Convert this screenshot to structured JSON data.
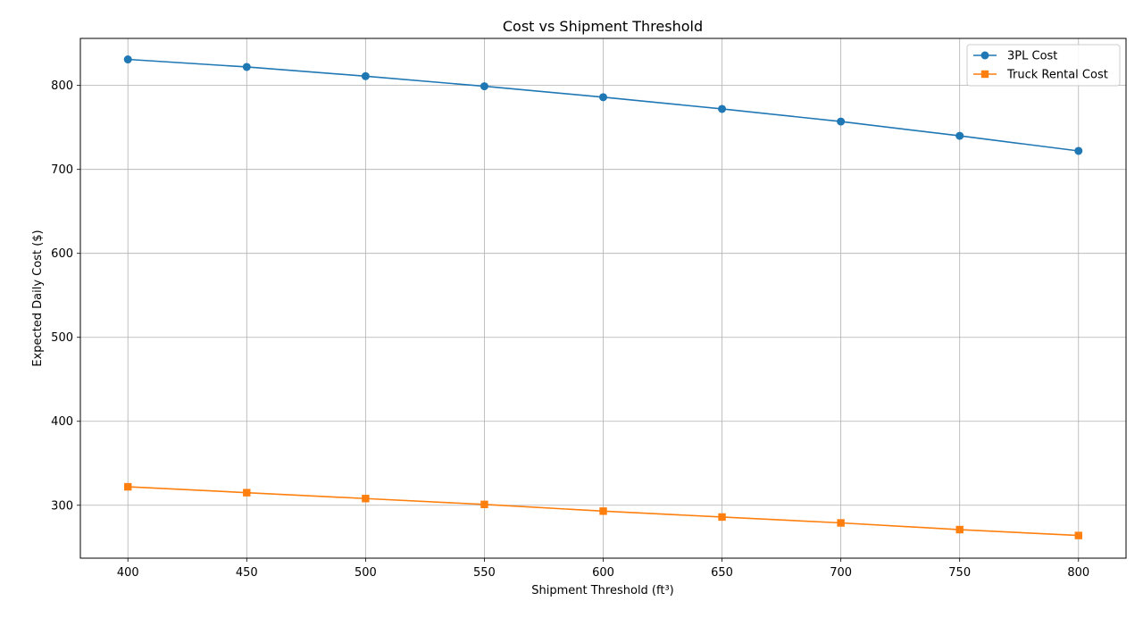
{
  "chart_data": {
    "type": "line",
    "title": "Cost vs Shipment Threshold",
    "xlabel": "Shipment Threshold (ft³)",
    "ylabel": "Expected Daily Cost ($)",
    "x": [
      400,
      450,
      500,
      550,
      600,
      650,
      700,
      750,
      800
    ],
    "xlim": [
      380,
      820
    ],
    "ylim": [
      237,
      856
    ],
    "xticks": [
      400,
      450,
      500,
      550,
      600,
      650,
      700,
      750,
      800
    ],
    "yticks": [
      300,
      400,
      500,
      600,
      700,
      800
    ],
    "grid": true,
    "legend_position": "top-right",
    "series": [
      {
        "name": "3PL Cost",
        "color": "#1f77b4",
        "marker": "circle",
        "values": [
          831,
          822,
          811,
          799,
          786,
          772,
          757,
          740,
          722
        ]
      },
      {
        "name": "Truck Rental Cost",
        "color": "#ff7f0e",
        "marker": "square",
        "values": [
          322,
          315,
          308,
          301,
          293,
          286,
          279,
          271,
          264
        ]
      }
    ]
  }
}
